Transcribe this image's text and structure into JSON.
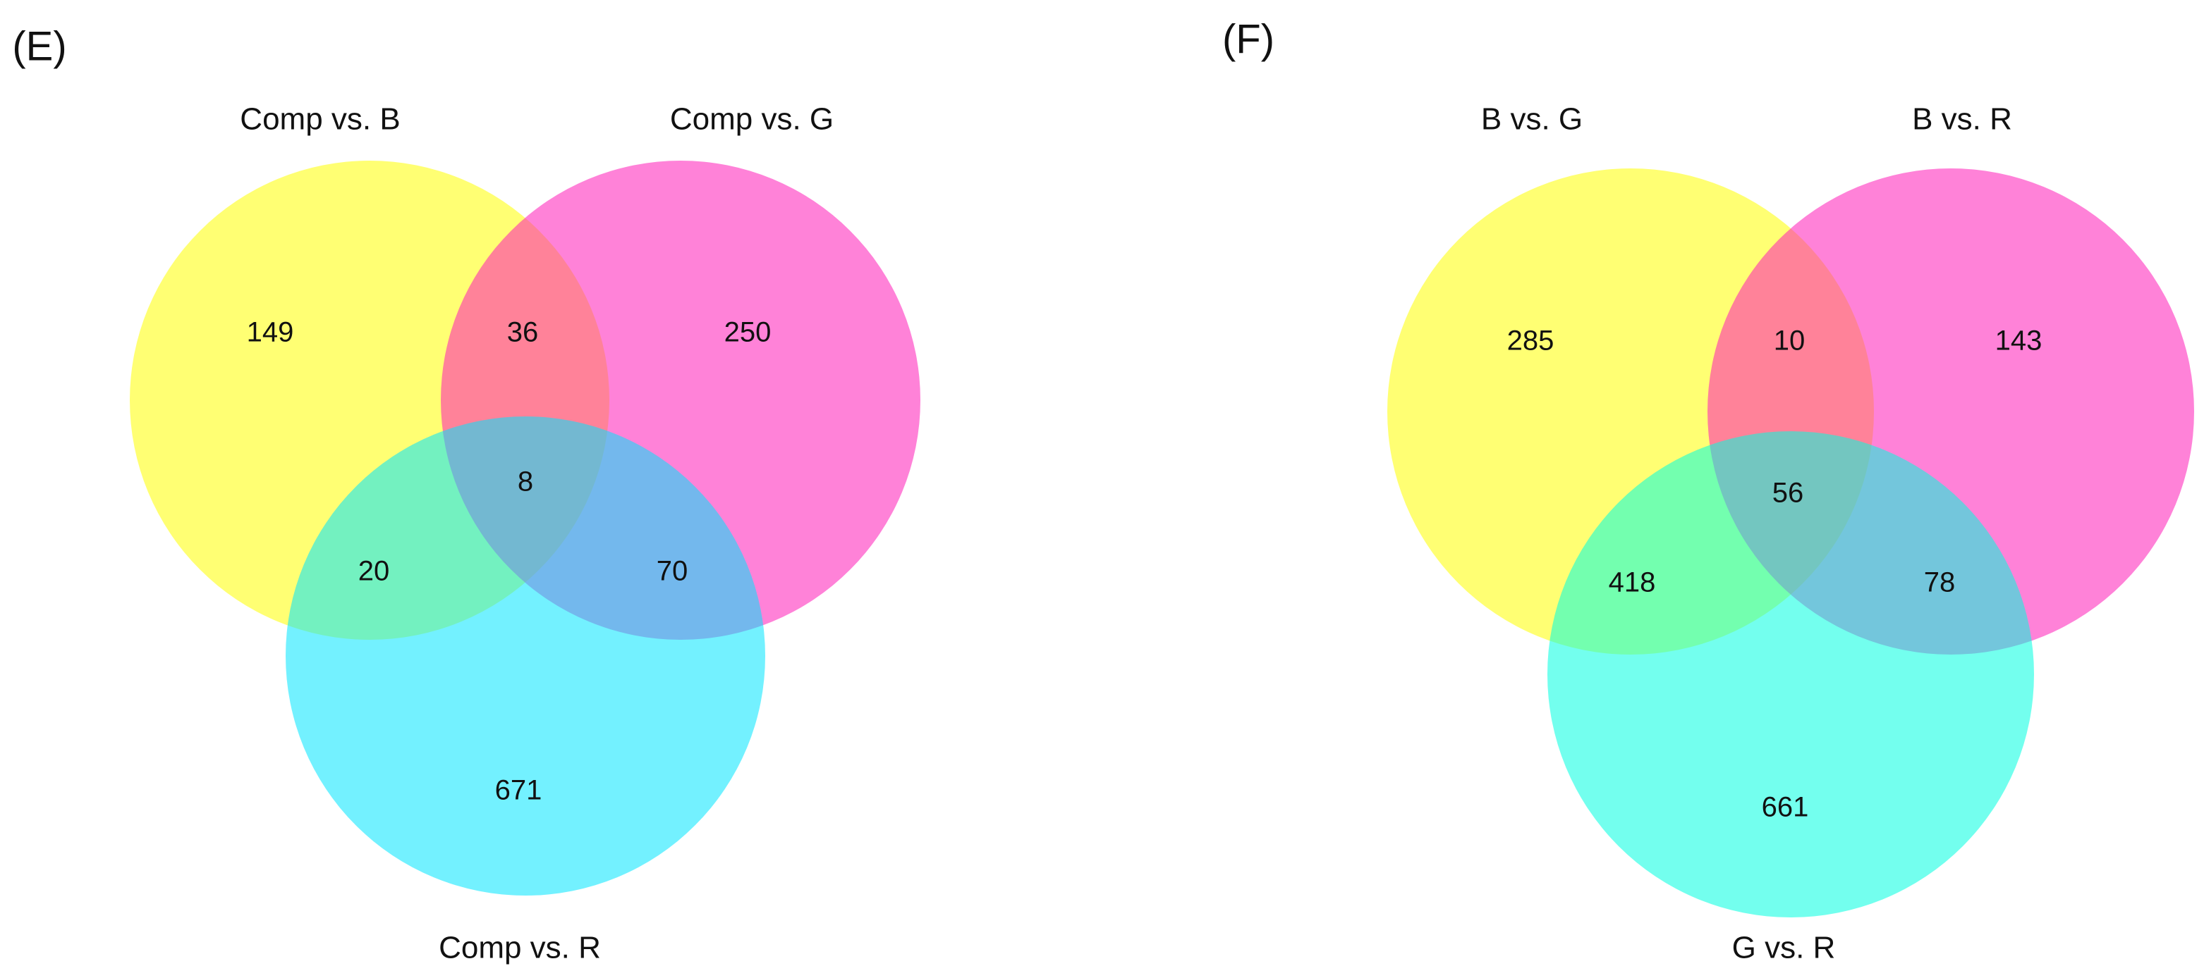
{
  "chart_data": [
    {
      "type": "venn",
      "title": "(E)",
      "sets": [
        {
          "name": "Comp vs. B",
          "color": "#ffff00"
        },
        {
          "name": "Comp vs. G",
          "color": "#ff1cb8"
        },
        {
          "name": "Comp vs. R",
          "color": "#00e6ff"
        }
      ],
      "regions": {
        "a": 149,
        "ab": 36,
        "b": 250,
        "abc": 8,
        "ac": 20,
        "bc": 70,
        "c": 671
      }
    },
    {
      "type": "venn",
      "title": "(F)",
      "sets": [
        {
          "name": "B vs. G",
          "color": "#ffff00"
        },
        {
          "name": "B vs. R",
          "color": "#ff1cb8"
        },
        {
          "name": "G vs. R",
          "color": "#00ffe0"
        }
      ],
      "regions": {
        "a": 285,
        "ab": 10,
        "b": 143,
        "abc": 56,
        "ac": 418,
        "bc": 78,
        "c": 661
      }
    }
  ]
}
